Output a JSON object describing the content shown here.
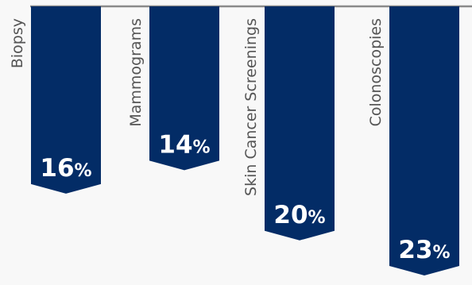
{
  "chart_data": {
    "type": "bar",
    "orientation": "downward",
    "categories": [
      "Biopsy",
      "Mammograms",
      "Skin Cancer Screenings",
      "Colonoscopies"
    ],
    "values": [
      16,
      14,
      20,
      23
    ],
    "value_suffix": "%",
    "ylim": [
      0,
      23
    ],
    "grid": false,
    "legend": "none"
  },
  "colors": {
    "bar": "#032c66",
    "baseline": "#8a8a8a",
    "category_label": "#555555",
    "value_label": "#ffffff",
    "background": "#f8f8f8"
  }
}
